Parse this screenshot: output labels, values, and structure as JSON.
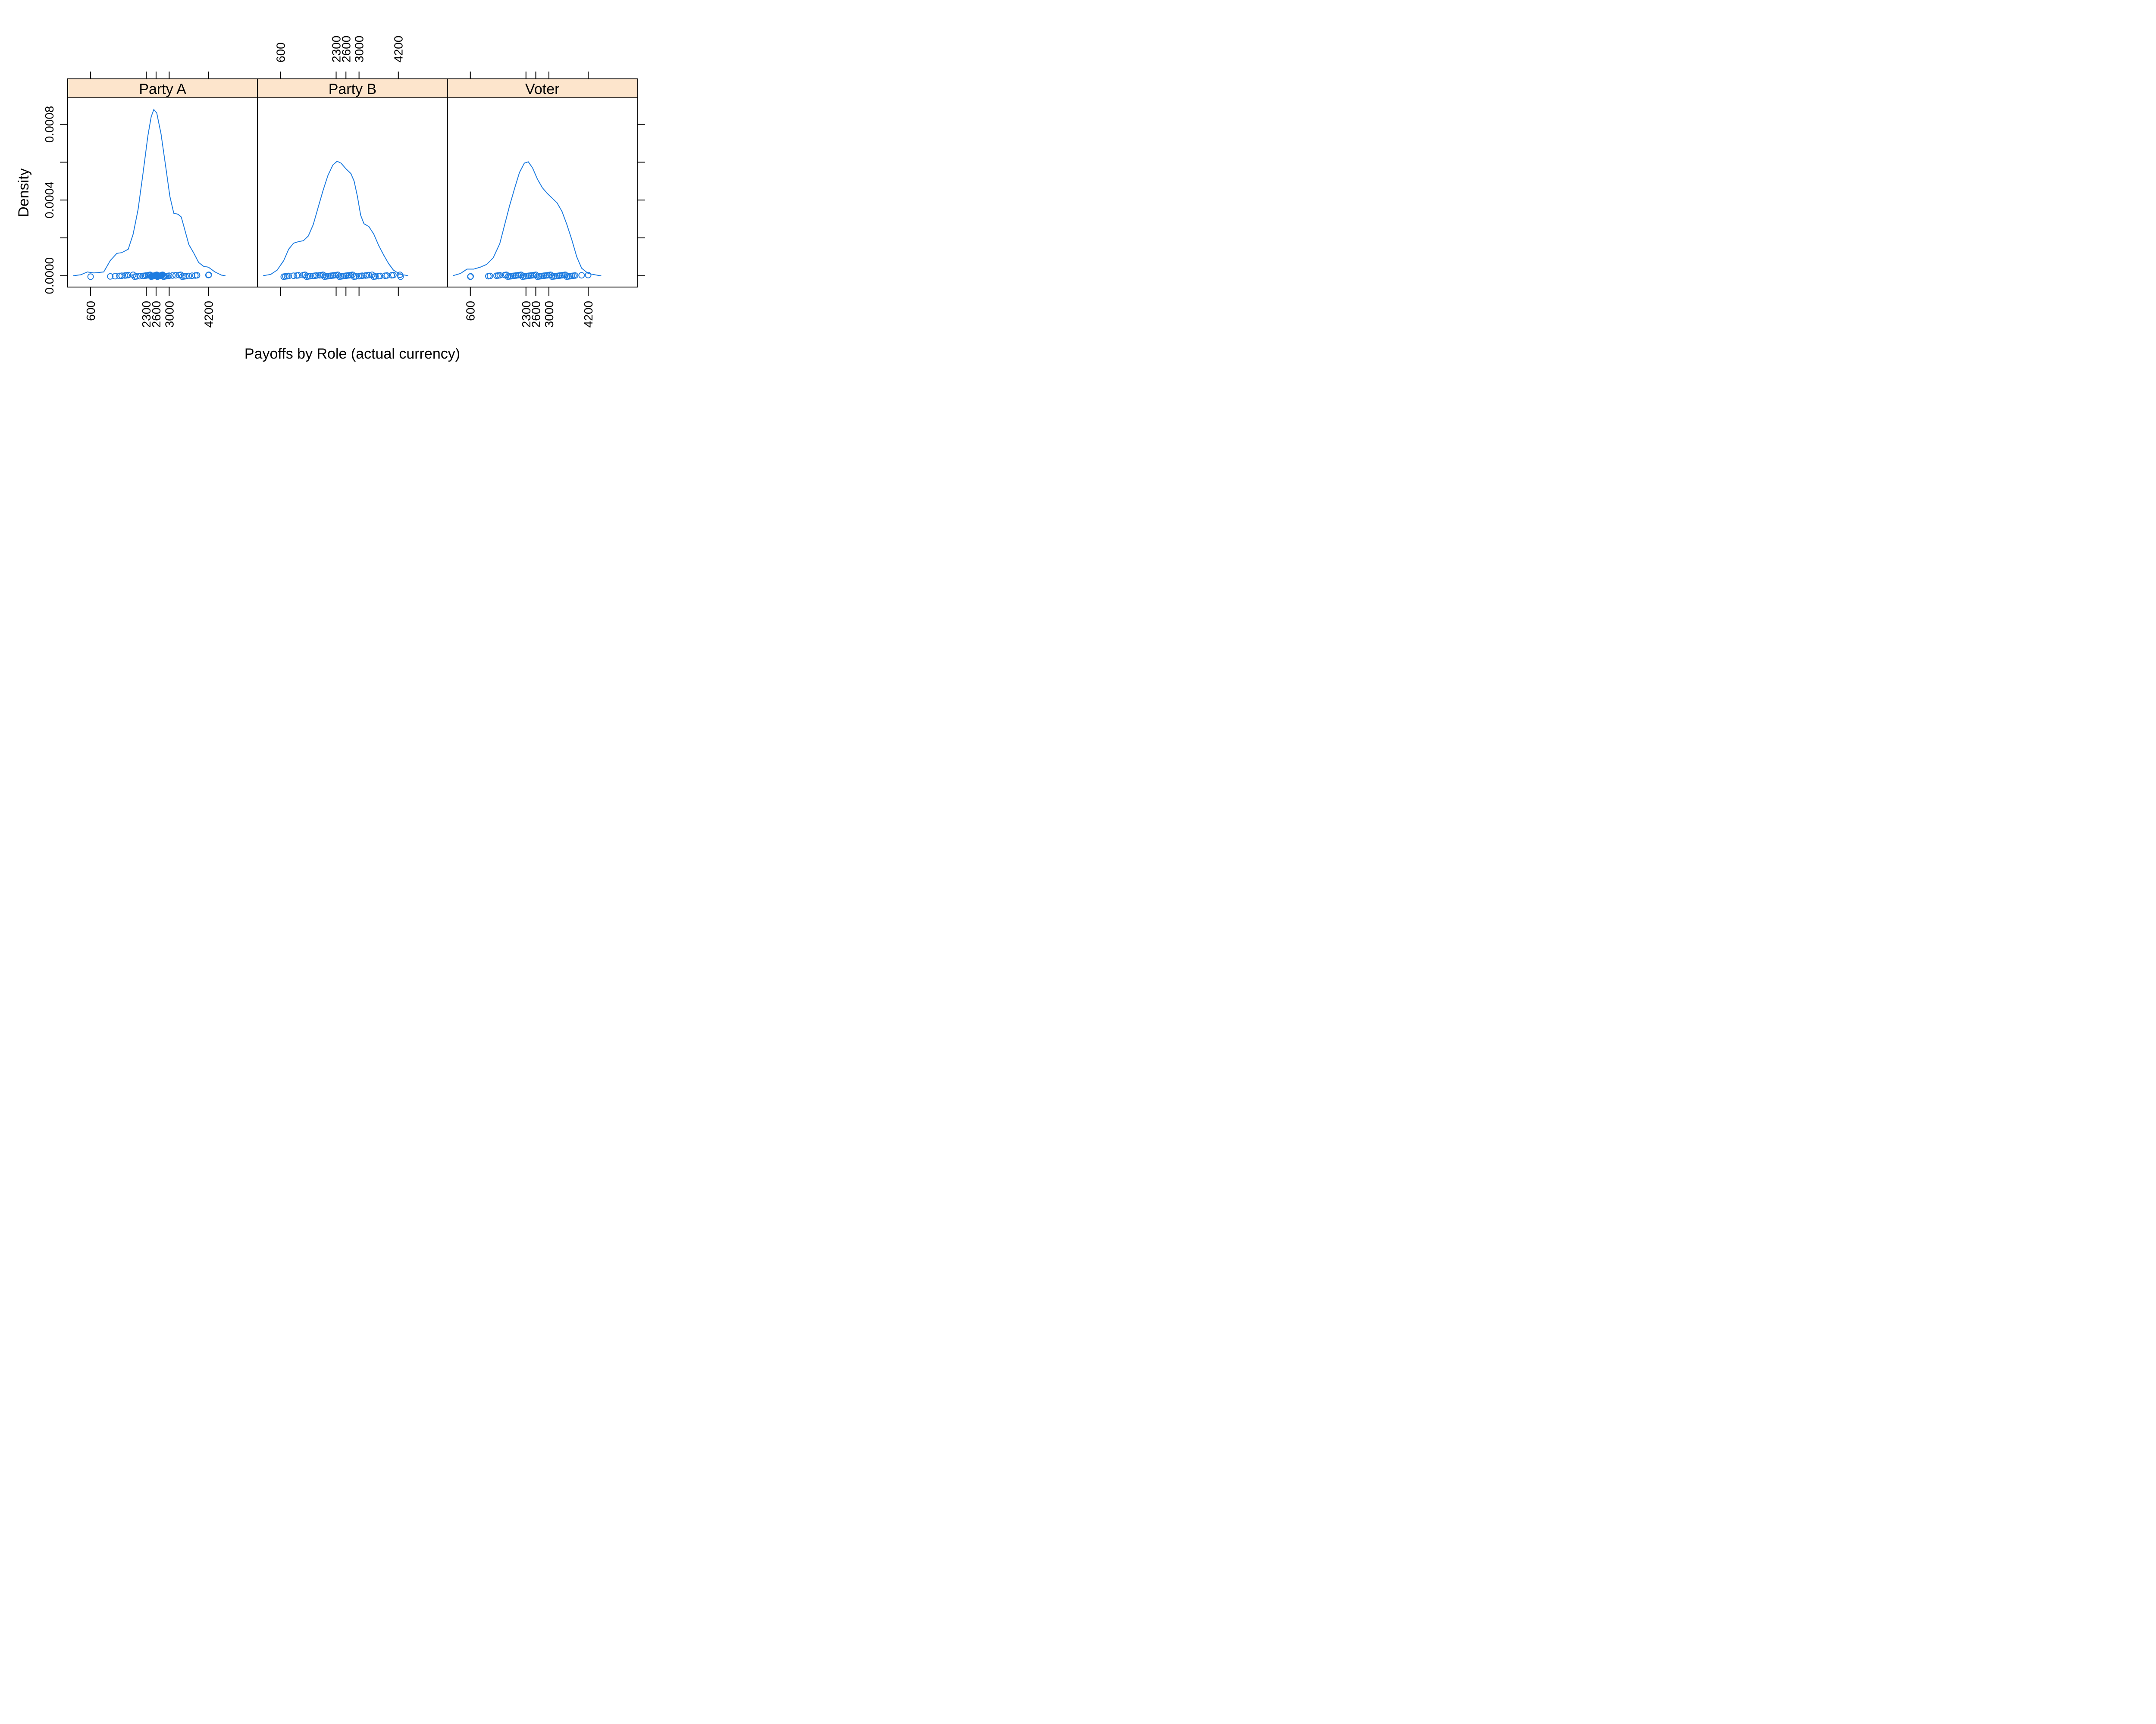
{
  "chart_data": {
    "type": "density",
    "xlabel": "Payoffs by Role (actual currency)",
    "ylabel": "Density",
    "xticks": [
      600,
      2300,
      2600,
      3000,
      4200
    ],
    "yticks": [
      0.0,
      0.0002,
      0.0004,
      0.0006,
      0.0008
    ],
    "ytick_labels": [
      "0.0000",
      "",
      "0.0004",
      "",
      "0.0008"
    ],
    "xlim": [
      -100,
      5700
    ],
    "ylim": [
      -5.98e-05,
      0.00094
    ],
    "colors": {
      "series": "#1e7ce0",
      "strip": "#fde5cc",
      "axis": "#000000"
    },
    "panels": [
      {
        "name": "Party A",
        "density": [
          [
            70,
            0.0
          ],
          [
            300,
            5e-06
          ],
          [
            500,
            2e-05
          ],
          [
            700,
            1.5e-05
          ],
          [
            1000,
            2e-05
          ],
          [
            1200,
            8e-05
          ],
          [
            1400,
            0.000118
          ],
          [
            1550,
            0.000122
          ],
          [
            1750,
            0.00014
          ],
          [
            1900,
            0.00022
          ],
          [
            2050,
            0.00035
          ],
          [
            2200,
            0.00054
          ],
          [
            2350,
            0.00074
          ],
          [
            2450,
            0.00084
          ],
          [
            2530,
            0.000878
          ],
          [
            2620,
            0.00086
          ],
          [
            2750,
            0.00075
          ],
          [
            2900,
            0.00057
          ],
          [
            3020,
            0.00042
          ],
          [
            3140,
            0.00033
          ],
          [
            3270,
            0.000325
          ],
          [
            3370,
            0.00031
          ],
          [
            3450,
            0.00026
          ],
          [
            3600,
            0.000165
          ],
          [
            3750,
            0.00012
          ],
          [
            3900,
            7e-05
          ],
          [
            4050,
            5e-05
          ],
          [
            4200,
            4.5e-05
          ],
          [
            4400,
            2e-05
          ],
          [
            4600,
            3e-06
          ],
          [
            4720,
            0.0
          ]
        ],
        "points": [
          600,
          1200,
          1350,
          1480,
          1550,
          1650,
          1700,
          1750,
          1900,
          1950,
          2000,
          2100,
          2200,
          2250,
          2300,
          2350,
          2380,
          2420,
          2450,
          2480,
          2500,
          2520,
          2540,
          2560,
          2580,
          2600,
          2620,
          2640,
          2660,
          2680,
          2700,
          2720,
          2740,
          2760,
          2780,
          2800,
          2830,
          2860,
          2900,
          2950,
          3000,
          3100,
          3200,
          3300,
          3350,
          3400,
          3450,
          3500,
          3600,
          3700,
          3800,
          3850,
          4200,
          4210
        ]
      },
      {
        "name": "Party B",
        "density": [
          [
            70,
            0.0
          ],
          [
            300,
            7e-06
          ],
          [
            500,
            3e-05
          ],
          [
            700,
            8e-05
          ],
          [
            850,
            0.00014
          ],
          [
            1000,
            0.000172
          ],
          [
            1150,
            0.00018
          ],
          [
            1300,
            0.000185
          ],
          [
            1450,
            0.00021
          ],
          [
            1600,
            0.00027
          ],
          [
            1750,
            0.00036
          ],
          [
            1900,
            0.00045
          ],
          [
            2050,
            0.00053
          ],
          [
            2200,
            0.000585
          ],
          [
            2330,
            0.000605
          ],
          [
            2450,
            0.000595
          ],
          [
            2600,
            0.000565
          ],
          [
            2750,
            0.00054
          ],
          [
            2850,
            0.0005
          ],
          [
            2950,
            0.00042
          ],
          [
            3050,
            0.00032
          ],
          [
            3150,
            0.000275
          ],
          [
            3300,
            0.00026
          ],
          [
            3450,
            0.00022
          ],
          [
            3600,
            0.00016
          ],
          [
            3750,
            0.00011
          ],
          [
            3900,
            6.5e-05
          ],
          [
            4050,
            3e-05
          ],
          [
            4250,
            8e-06
          ],
          [
            4500,
            0.0
          ]
        ],
        "points": [
          700,
          750,
          800,
          850,
          1000,
          1100,
          1150,
          1300,
          1350,
          1400,
          1450,
          1500,
          1600,
          1650,
          1700,
          1800,
          1850,
          1900,
          1950,
          2000,
          2050,
          2100,
          2150,
          2200,
          2250,
          2300,
          2350,
          2400,
          2450,
          2500,
          2550,
          2600,
          2650,
          2700,
          2750,
          2800,
          2850,
          2900,
          3000,
          3050,
          3100,
          3200,
          3250,
          3300,
          3400,
          3450,
          3500,
          3600,
          3650,
          3800,
          3850,
          4000,
          4050,
          4250,
          4270
        ]
      },
      {
        "name": "Voter",
        "density": [
          [
            70,
            0.0
          ],
          [
            300,
            1.2e-05
          ],
          [
            500,
            3.5e-05
          ],
          [
            700,
            3.5e-05
          ],
          [
            900,
            4.5e-05
          ],
          [
            1100,
            6e-05
          ],
          [
            1300,
            9.5e-05
          ],
          [
            1500,
            0.00017
          ],
          [
            1650,
            0.00027
          ],
          [
            1800,
            0.00037
          ],
          [
            1950,
            0.00046
          ],
          [
            2100,
            0.000545
          ],
          [
            2250,
            0.000595
          ],
          [
            2370,
            0.000602
          ],
          [
            2500,
            0.00057
          ],
          [
            2650,
            0.00051
          ],
          [
            2800,
            0.000465
          ],
          [
            2950,
            0.000435
          ],
          [
            3100,
            0.00041
          ],
          [
            3250,
            0.000385
          ],
          [
            3400,
            0.00034
          ],
          [
            3550,
            0.00027
          ],
          [
            3700,
            0.00019
          ],
          [
            3850,
            0.0001
          ],
          [
            4000,
            4e-05
          ],
          [
            4200,
            1.2e-05
          ],
          [
            4500,
            2e-06
          ],
          [
            4600,
            0.0
          ]
        ],
        "points": [
          600,
          610,
          1150,
          1200,
          1400,
          1450,
          1500,
          1650,
          1700,
          1750,
          1800,
          1850,
          1900,
          1950,
          2000,
          2050,
          2100,
          2150,
          2200,
          2250,
          2300,
          2350,
          2400,
          2450,
          2500,
          2550,
          2600,
          2650,
          2700,
          2750,
          2800,
          2850,
          2900,
          2950,
          3000,
          3050,
          3100,
          3150,
          3200,
          3250,
          3300,
          3350,
          3400,
          3450,
          3500,
          3550,
          3600,
          3650,
          3700,
          3750,
          3800,
          4000,
          4200
        ]
      }
    ]
  }
}
